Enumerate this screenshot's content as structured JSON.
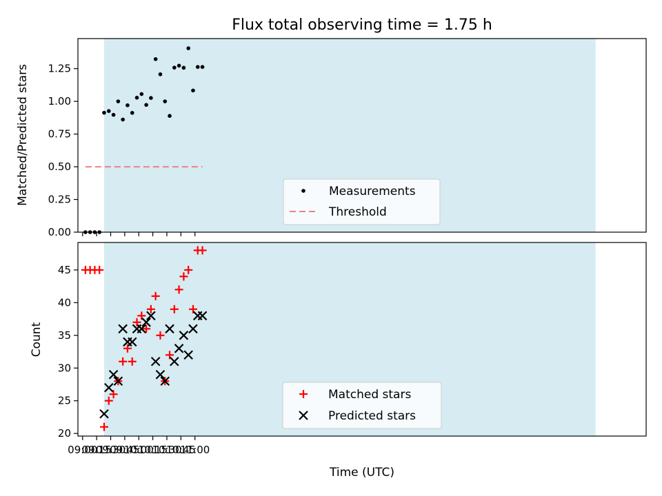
{
  "chart_data": [
    {
      "type": "scatter",
      "title": "Flux total observing time = 1.75 h",
      "xlabel": "",
      "ylabel": "Matched/Predicted stars",
      "xlim_minutes": [
        535,
        1142
      ],
      "ylim": [
        0,
        1.48
      ],
      "yticks": [
        0,
        0.25,
        0.5,
        0.75,
        1.0,
        1.25
      ],
      "ytick_labels": [
        "0.00",
        "0.25",
        "0.50",
        "0.75",
        "1.00",
        "1.25"
      ],
      "observing_window_minutes": [
        563,
        1088
      ],
      "observing_window_color": "#add8e6",
      "x_minutes": [
        543,
        548,
        553,
        558,
        563,
        568,
        573,
        578,
        583,
        588,
        593,
        598,
        603,
        608,
        613,
        618,
        623,
        628,
        633,
        638,
        643,
        648,
        653,
        658,
        663,
        668
      ],
      "series": [
        {
          "name": "Measurements",
          "marker": "dot",
          "color": "#000000",
          "values": [
            0,
            0,
            0,
            0,
            0.913,
            0.926,
            0.897,
            1.0,
            0.861,
            0.97,
            0.912,
            1.028,
            1.056,
            0.973,
            1.026,
            1.323,
            1.207,
            1.0,
            0.889,
            1.258,
            1.273,
            1.257,
            1.406,
            1.083,
            1.263,
            1.263
          ]
        },
        {
          "name": "Threshold",
          "style": "dashed",
          "color": "#f08080",
          "value": 0.5,
          "x_range_minutes": [
            543,
            668
          ]
        }
      ],
      "legend": "lower-center"
    },
    {
      "type": "scatter",
      "title": "",
      "xlabel": "Time (UTC)",
      "ylabel": "Count",
      "xlim_minutes": [
        535,
        1142
      ],
      "ylim": [
        19.6,
        49.2
      ],
      "yticks": [
        20,
        25,
        30,
        35,
        40,
        45
      ],
      "ytick_labels": [
        "20",
        "25",
        "30",
        "35",
        "40",
        "45"
      ],
      "xticks_minutes": [
        540,
        555,
        570,
        585,
        600,
        615,
        630,
        645,
        660
      ],
      "xtick_labels": [
        "09:00",
        "09:15",
        "09:30",
        "09:45",
        "10:00",
        "10:15",
        "10:30",
        "10:45",
        "11:00"
      ],
      "observing_window_minutes": [
        563,
        1088
      ],
      "observing_window_color": "#add8e6",
      "x_minutes": [
        543,
        548,
        553,
        558,
        563,
        568,
        573,
        578,
        583,
        588,
        593,
        598,
        603,
        608,
        613,
        618,
        623,
        628,
        633,
        638,
        643,
        648,
        653,
        658,
        663,
        668
      ],
      "series": [
        {
          "name": "Matched stars",
          "marker": "plus",
          "color": "#ff0000",
          "values": [
            45,
            45,
            45,
            45,
            21,
            25,
            26,
            28,
            31,
            33,
            31,
            37,
            38,
            36,
            39,
            41,
            35,
            28,
            32,
            39,
            42,
            44,
            45,
            39,
            48,
            48
          ]
        },
        {
          "name": "Predicted stars",
          "marker": "x",
          "color": "#000000",
          "values": [
            null,
            null,
            null,
            null,
            23,
            27,
            29,
            28,
            36,
            34,
            34,
            36,
            36,
            37,
            38,
            31,
            29,
            28,
            36,
            31,
            33,
            35,
            32,
            36,
            38,
            38
          ]
        }
      ],
      "legend": "lower-center"
    }
  ]
}
